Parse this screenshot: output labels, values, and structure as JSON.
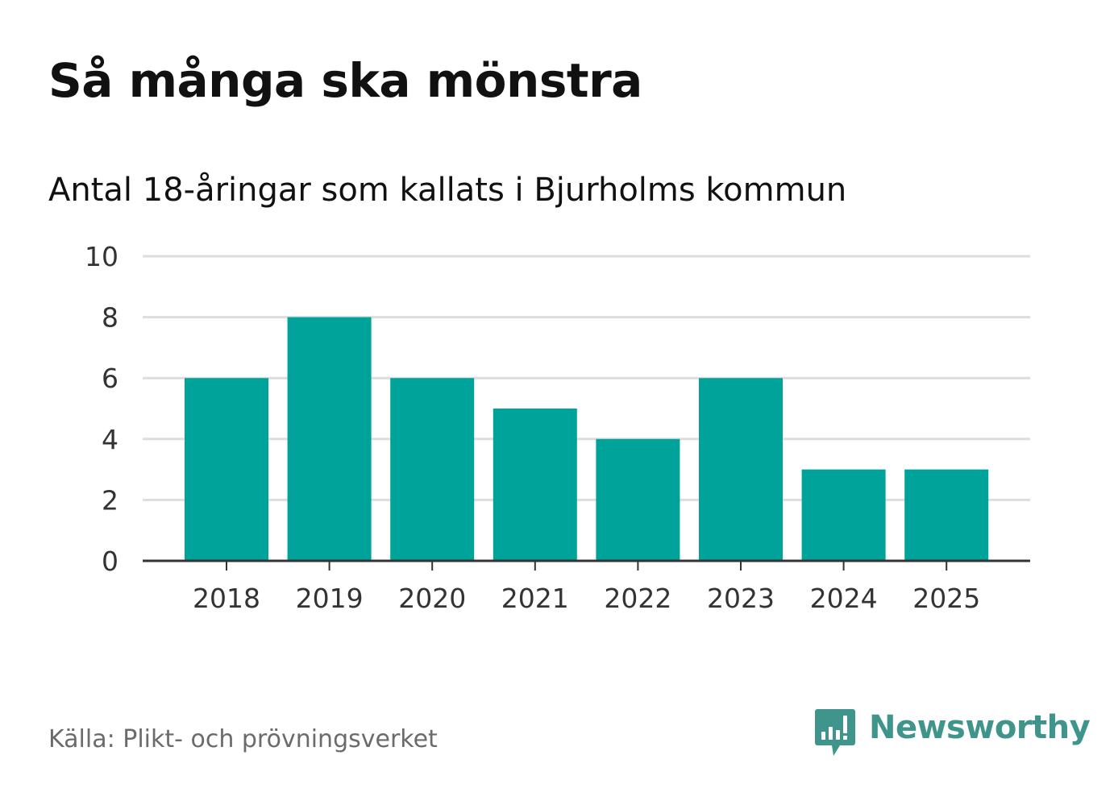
{
  "chart_data": {
    "type": "bar",
    "title": "Så många ska mönstra",
    "subtitle": "Antal 18-åringar som kallats i Bjurholms kommun",
    "categories": [
      "2018",
      "2019",
      "2020",
      "2021",
      "2022",
      "2023",
      "2024",
      "2025"
    ],
    "values": [
      6,
      8,
      6,
      5,
      4,
      6,
      3,
      3
    ],
    "ylim": [
      0,
      10
    ],
    "yticks": [
      "0",
      "2",
      "4",
      "6",
      "8",
      "10"
    ],
    "xlabel": "",
    "ylabel": "",
    "grid": true,
    "bar_color": "#00a39a",
    "grid_color": "#dddddd",
    "axis_color": "#333333"
  },
  "footer": {
    "source": "Källa: Plikt- och prövningsverket",
    "brand_name": "Newsworthy",
    "brand_icon": "bar-chart-speech-bubble-icon",
    "brand_color": "#3f958b"
  }
}
